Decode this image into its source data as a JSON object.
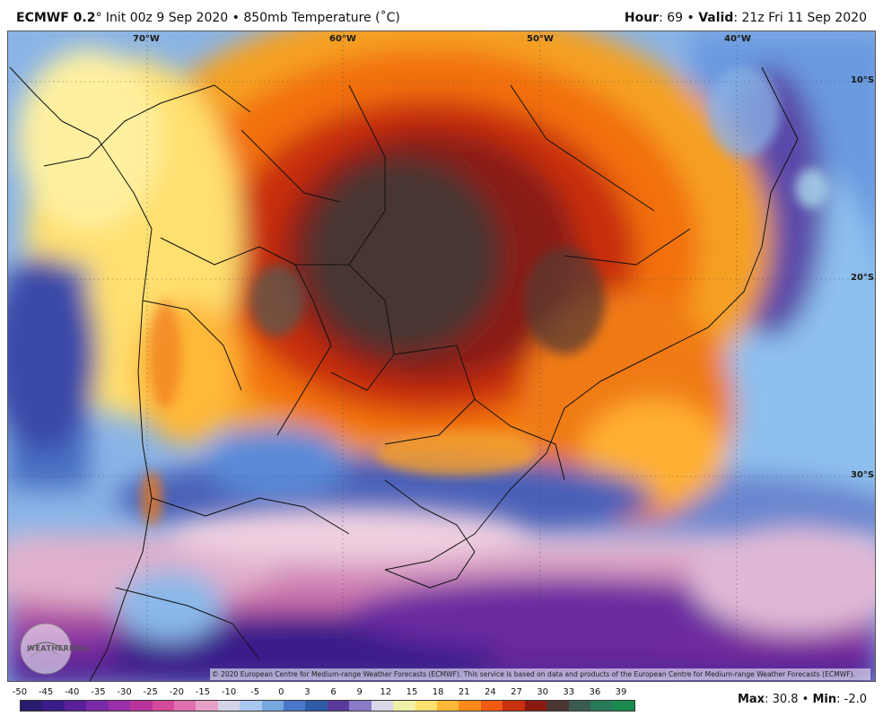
{
  "header": {
    "model": "ECMWF 0.2",
    "init": "° Init 00z 9 Sep 2020 • 850mb Temperature (˚C)",
    "hour_label": "Hour",
    "hour_value": ": 69 • ",
    "valid_label": "Valid",
    "valid_value": ": 21z Fri 11 Sep 2020"
  },
  "grid_labels": {
    "lon_70w": "70°W",
    "lon_60w": "60°W",
    "lon_50w": "50°W",
    "lon_40w": "40°W",
    "lat_10s": "10°S",
    "lat_20s": "20°S",
    "lat_30s": "30°S"
  },
  "copyright": "© 2020 European Centre for Medium-range Weather Forecasts (ECMWF). This service is based on data and products of the European Centre for Medium-range Weather Forecasts (ECMWF).",
  "logo_text": "WEATHERBELL",
  "colorbar": {
    "labels": [
      "-50",
      "-45",
      "-40",
      "-35",
      "-30",
      "-25",
      "-20",
      "-15",
      "-10",
      "-5",
      "0",
      "3",
      "6",
      "9",
      "12",
      "15",
      "18",
      "21",
      "24",
      "27",
      "30",
      "33",
      "36",
      "39"
    ],
    "colors": [
      "#2b1b6e",
      "#3a1d8a",
      "#5a1f9a",
      "#7a2aa8",
      "#9a2fa8",
      "#b8349c",
      "#d24a9a",
      "#e070b0",
      "#e8a0c8",
      "#d4d4e8",
      "#a8c8f0",
      "#78a8e0",
      "#4a78c8",
      "#2e5aa8",
      "#5a3a9a",
      "#8a7ac8",
      "#d8d8e8",
      "#f0f0a8",
      "#ffe070",
      "#ffb838",
      "#ff8a1a",
      "#f05a12",
      "#c83010",
      "#8a1a10",
      "#4a3530",
      "#3a5a50",
      "#2a7a5a",
      "#1a8a50"
    ]
  },
  "stats": {
    "max_label": "Max",
    "max_value": ": 30.8 • ",
    "min_label": "Min",
    "min_value": ": -2.0"
  }
}
